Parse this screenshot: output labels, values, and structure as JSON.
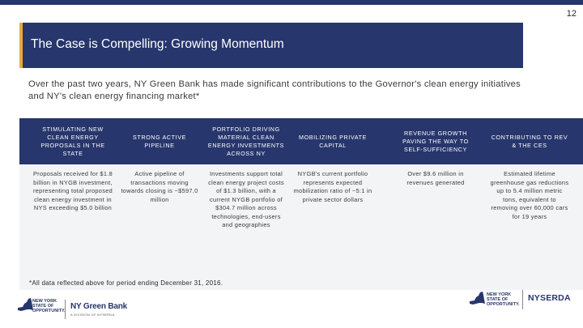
{
  "page_number": "12",
  "title": "The Case is Compelling: Growing Momentum",
  "intro": "Over the past two years, NY Green Bank has made significant contributions to the Governor's clean energy initiatives and NY's clean energy financing market*",
  "columns": [
    {
      "header": "STIMULATING NEW CLEAN ENERGY PROPOSALS IN THE STATE",
      "body": "Proposals received for $1.8 billion in NYGB investment, representing total proposed clean energy investment in NYS exceeding $5.0 billion"
    },
    {
      "header": "STRONG ACTIVE PIPELINE",
      "body": "Active pipeline of transactions moving towards closing is ~$597.0 million"
    },
    {
      "header": "PORTFOLIO DRIVING MATERIAL CLEAN ENERGY INVESTMENTS ACROSS NY",
      "body": "Investments support total clean energy project costs of $1.3 billion, with a current NYGB portfolio of $304.7 million across technologies, end-users and geographies"
    },
    {
      "header": "MOBILIZING PRIVATE CAPITAL",
      "body": "NYGB's current portfolio represents expected mobilization ratio of ~5:1 in private sector dollars"
    },
    {
      "header": "REVENUE GROWTH PAVING THE WAY TO SELF-SUFFICIENCY",
      "body": "Over $9.6 million in revenues generated"
    },
    {
      "header": "CONTRIBUTING TO REV & THE CES",
      "body": "Estimated lifetime greenhouse gas reductions up to 5.4 million metric tons, equivalent to removing over 60,000 cars for 19 years"
    }
  ],
  "footnote": "*All data reflected above for period ending December 31, 2016.",
  "logos": {
    "left_state": "NEW YORK\nSTATE OF\nOPPORTUNITY.",
    "left_brand": "NY Green Bank",
    "left_sub": "A DIVISION OF NYSERDA",
    "right_state": "NEW YORK\nSTATE OF\nOPPORTUNITY.",
    "right_brand": "NYSERDA"
  },
  "colors": {
    "navy": "#27366c",
    "accent": "#e8a93a",
    "panel": "#f3f4f6"
  }
}
